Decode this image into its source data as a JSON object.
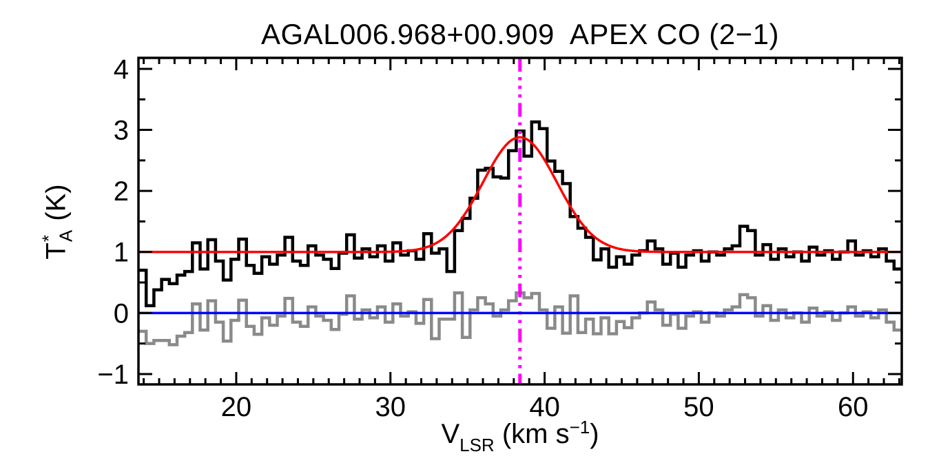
{
  "title": "AGAL006.968+00.909  APEX CO (2−1)",
  "axes": {
    "x": {
      "label_main": "V",
      "label_sub": "LSR",
      "label_mid": " (km s",
      "label_sup": "−1",
      "label_end": ")",
      "major_ticks": [
        20,
        30,
        40,
        50,
        60
      ],
      "tick_labels": [
        "20",
        "30",
        "40",
        "50",
        "60"
      ],
      "minor_step": 1
    },
    "y": {
      "label_main": "T",
      "label_sup": "*",
      "label_sub": "A",
      "label_unit": " (K)",
      "major_ticks": [
        -1,
        0,
        1,
        2,
        3,
        4
      ],
      "tick_labels": [
        "−1",
        "0",
        "1",
        "2",
        "3",
        "4"
      ],
      "minor_step": 0.5
    }
  },
  "colors": {
    "spectrum": "#000000",
    "residual": "#8a8a8a",
    "fit": "#ff0000",
    "zero_line": "#0000ff",
    "velocity_marker": "#ff00ff",
    "axes": "#000000",
    "background": "#ffffff"
  },
  "chart_data": {
    "type": "line",
    "title": "AGAL006.968+00.909  APEX CO (2−1)",
    "xlabel": "VLSR (km s−1)",
    "ylabel": "TA* (K)",
    "xlim": [
      13.66,
      63.16
    ],
    "ylim": [
      -1.17,
      4.18
    ],
    "grid": false,
    "legend": false,
    "x_start": 13.66,
    "channel_width": 0.5,
    "series": [
      {
        "name": "co21_spectrum",
        "style": "histogram",
        "color": "#000000",
        "baseline_offset": 1.0,
        "values": [
          0.7,
          0.12,
          0.38,
          0.55,
          0.48,
          0.62,
          0.68,
          1.15,
          0.72,
          1.2,
          0.85,
          0.54,
          0.88,
          1.21,
          0.78,
          0.65,
          0.92,
          0.8,
          0.95,
          1.24,
          0.85,
          0.78,
          1.1,
          0.95,
          0.88,
          0.73,
          0.98,
          1.28,
          0.9,
          1.05,
          0.92,
          1.1,
          0.85,
          1.15,
          0.95,
          1.02,
          0.88,
          1.3,
          0.98,
          1.05,
          0.68,
          1.35,
          1.55,
          1.88,
          2.34,
          2.37,
          2.23,
          2.21,
          2.66,
          2.98,
          2.57,
          3.13,
          3.02,
          2.49,
          2.32,
          2.12,
          1.58,
          1.39,
          1.24,
          0.87,
          1.05,
          0.75,
          0.92,
          0.8,
          0.95,
          1.02,
          1.18,
          1.05,
          0.8,
          0.98,
          0.75,
          0.95,
          1.02,
          0.85,
          1.0,
          0.95,
          1.05,
          1.1,
          1.42,
          1.35,
          0.95,
          1.12,
          0.88,
          1.05,
          0.92,
          1.0,
          0.85,
          1.08,
          0.95,
          1.02,
          0.88,
          1.0,
          1.18,
          0.95,
          1.02,
          0.92,
          1.05,
          0.85,
          0.72
        ]
      },
      {
        "name": "fit_residual",
        "style": "histogram",
        "color": "#8a8a8a",
        "values": [
          -0.3,
          -0.5,
          -0.45,
          -0.45,
          -0.52,
          -0.38,
          -0.32,
          0.15,
          -0.28,
          0.2,
          -0.15,
          -0.46,
          -0.12,
          0.21,
          -0.22,
          -0.35,
          -0.08,
          -0.2,
          -0.05,
          0.24,
          -0.15,
          -0.22,
          0.1,
          -0.05,
          -0.12,
          -0.27,
          -0.02,
          0.28,
          -0.1,
          0.05,
          -0.08,
          0.1,
          -0.15,
          0.15,
          -0.05,
          0.02,
          -0.17,
          0.22,
          -0.42,
          -0.1,
          -0.1,
          0.33,
          -0.4,
          0.05,
          0.25,
          0.15,
          -0.05,
          0.05,
          0.2,
          0.33,
          0.25,
          0.32,
          0.05,
          -0.25,
          0.1,
          -0.33,
          0.28,
          -0.32,
          -0.1,
          -0.34,
          -0.08,
          -0.34,
          -0.14,
          -0.24,
          -0.08,
          0.0,
          0.18,
          0.05,
          -0.2,
          -0.02,
          -0.25,
          -0.05,
          0.02,
          -0.15,
          0.0,
          -0.05,
          0.05,
          0.1,
          0.3,
          0.25,
          -0.05,
          0.12,
          -0.12,
          0.05,
          -0.08,
          0.0,
          -0.15,
          0.08,
          -0.05,
          0.02,
          -0.12,
          0.0,
          0.1,
          -0.05,
          0.02,
          -0.08,
          0.05,
          -0.15,
          -0.28
        ]
      },
      {
        "name": "gaussian_fit",
        "style": "gaussian",
        "color": "#ff0000",
        "baseline": 1.0,
        "amplitude": 1.88,
        "center": 38.4,
        "sigma": 2.4
      },
      {
        "name": "zero_level",
        "style": "hline",
        "color": "#0000ff",
        "y": 0
      },
      {
        "name": "vlsr_marker",
        "style": "vline",
        "color": "#ff00ff",
        "x": 38.4,
        "linestyle": "dash-dot-dot-dot"
      }
    ]
  }
}
